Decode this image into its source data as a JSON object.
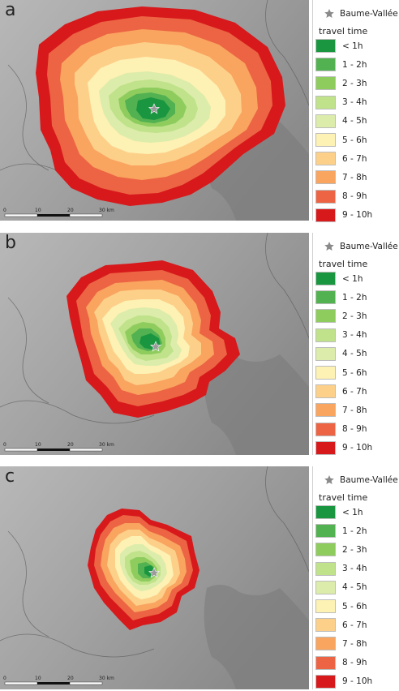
{
  "panels": [
    {
      "label": "a"
    },
    {
      "label": "b"
    },
    {
      "label": "c"
    }
  ],
  "legend": {
    "site_name": "Baume-Vallée",
    "title": "travel time",
    "items": [
      {
        "label": "< 1h",
        "color": "#1a9641"
      },
      {
        "label": "1 - 2h",
        "color": "#52b151"
      },
      {
        "label": "2 - 3h",
        "color": "#8fcc5e"
      },
      {
        "label": "3 - 4h",
        "color": "#bfe28a"
      },
      {
        "label": "4 - 5h",
        "color": "#dcecaa"
      },
      {
        "label": "5 - 6h",
        "color": "#fdf1b4"
      },
      {
        "label": "6 - 7h",
        "color": "#fdd08a"
      },
      {
        "label": "7 - 8h",
        "color": "#f9a45f"
      },
      {
        "label": "8 - 9h",
        "color": "#ec6443"
      },
      {
        "label": "9 - 10h",
        "color": "#d7191c"
      }
    ]
  },
  "scale_bar": {
    "labels": [
      "0",
      "10",
      "20",
      "30 km"
    ]
  },
  "icons": {
    "site_marker": "star-icon"
  }
}
